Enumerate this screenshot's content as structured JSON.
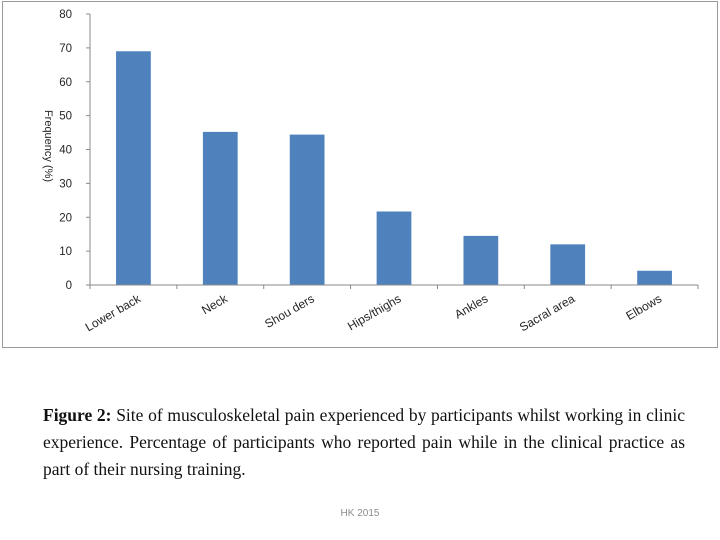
{
  "chart_data": {
    "type": "bar",
    "title": "",
    "xlabel": "",
    "ylabel": "Frequency (%)",
    "ylim": [
      0,
      80
    ],
    "yticks": [
      0,
      10,
      20,
      30,
      40,
      50,
      60,
      70,
      80
    ],
    "categories": [
      "Lower back",
      "Neck",
      "Shou ders",
      "Hips/thighs",
      "Ankles",
      "Sacral area",
      "Elbows"
    ],
    "values": [
      69,
      45.2,
      44.4,
      21.7,
      14.5,
      12,
      4.2
    ],
    "bar_color": "#4f81bd",
    "grid": false
  },
  "caption": {
    "label": "Figure 2:",
    "text": " Site of musculoskeletal pain experienced by participants whilst working in clinic experience. Percentage of participants who reported pain while in the clinical practice as part of their nursing training."
  },
  "footer": "HK 2015"
}
